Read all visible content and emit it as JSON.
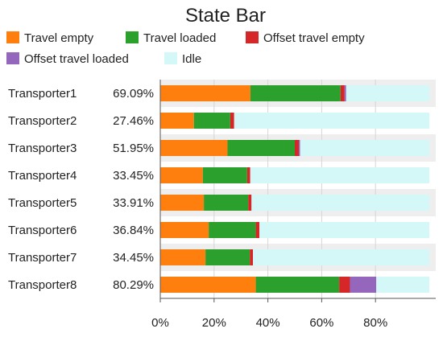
{
  "chart_data": {
    "type": "bar",
    "orientation": "horizontal",
    "stacked": true,
    "title": "State Bar",
    "legend": {
      "placement": "top",
      "entries": [
        {
          "name": "Travel empty",
          "color": "#ff7f0e"
        },
        {
          "name": "Travel loaded",
          "color": "#2ca02c"
        },
        {
          "name": "Offset travel empty",
          "color": "#d62728"
        },
        {
          "name": "Offset travel loaded",
          "color": "#9467bd"
        },
        {
          "name": "Idle",
          "color": "#d4f7f7"
        }
      ]
    },
    "categories": [
      "Transporter1",
      "Transporter2",
      "Transporter3",
      "Transporter4",
      "Transporter5",
      "Transporter6",
      "Transporter7",
      "Transporter8"
    ],
    "utilization_labels": [
      "69.09%",
      "27.46%",
      "51.95%",
      "33.45%",
      "33.91%",
      "36.84%",
      "34.45%",
      "80.29%"
    ],
    "series": [
      {
        "name": "Travel empty",
        "color": "#ff7f0e",
        "values": [
          33.5,
          12.5,
          25.0,
          15.8,
          16.2,
          18.0,
          16.8,
          35.5
        ]
      },
      {
        "name": "Travel loaded",
        "color": "#2ca02c",
        "values": [
          33.5,
          13.5,
          25.0,
          16.5,
          16.5,
          17.5,
          16.5,
          31.0
        ]
      },
      {
        "name": "Offset travel empty",
        "color": "#d62728",
        "values": [
          1.5,
          1.46,
          1.5,
          1.15,
          1.21,
          1.34,
          1.15,
          4.0
        ]
      },
      {
        "name": "Offset travel loaded",
        "color": "#9467bd",
        "values": [
          0.59,
          0,
          0.45,
          0,
          0,
          0,
          0,
          9.79
        ]
      },
      {
        "name": "Idle",
        "color": "#d4f7f7",
        "values": [
          30.91,
          72.54,
          48.05,
          66.55,
          66.09,
          63.16,
          65.55,
          19.71
        ]
      }
    ],
    "x_ticks": [
      "0%",
      "20%",
      "40%",
      "60%",
      "80%"
    ],
    "xlim": [
      0,
      100
    ],
    "grid": true
  }
}
